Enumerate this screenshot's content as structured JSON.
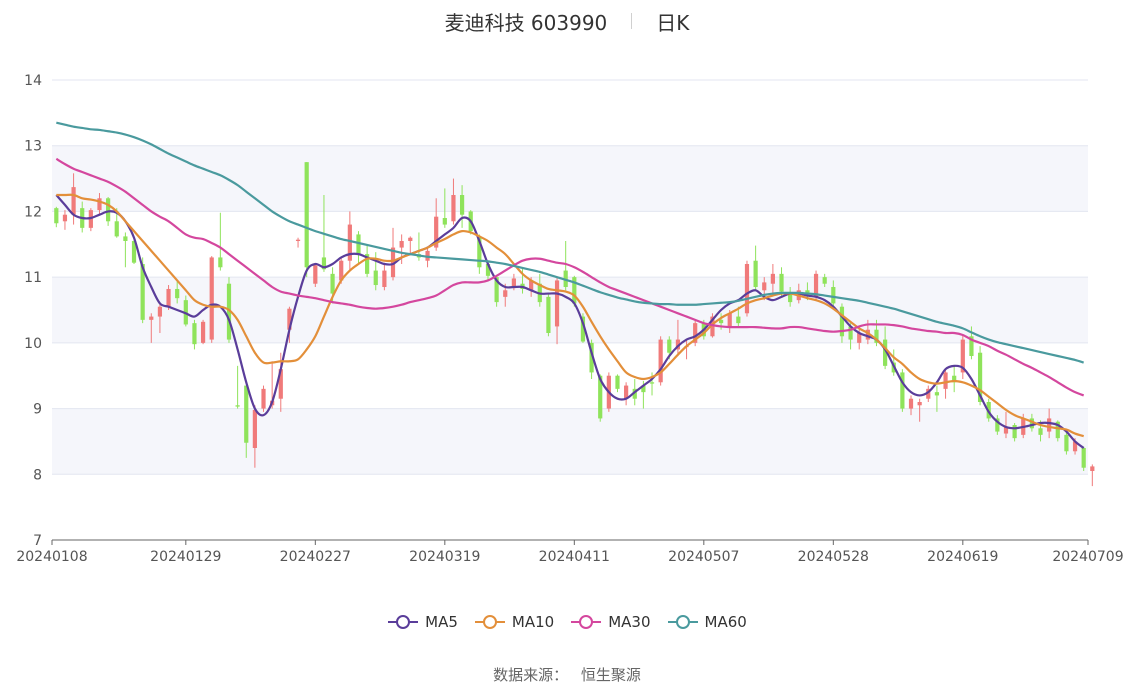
{
  "header": {
    "stock_name": "麦迪科技 603990",
    "period": "日K"
  },
  "source": {
    "label": "数据来源：",
    "value": "恒生聚源"
  },
  "chart_data": {
    "type": "candlestick",
    "title": "麦迪科技 603990",
    "subtitle": "日K",
    "ylim": [
      7,
      14
    ],
    "y_ticks": [
      7,
      8,
      9,
      10,
      11,
      12,
      13,
      14
    ],
    "x_tick_labels": [
      "20240108",
      "20240129",
      "20240227",
      "20240319",
      "20240411",
      "20240507",
      "20240528",
      "20240619",
      "20240709"
    ],
    "x_tick_indices": [
      0,
      15,
      30,
      45,
      60,
      75,
      90,
      105,
      119
    ],
    "candle_count": 120,
    "up_color": "#f07a7a",
    "down_color": "#8fe35b",
    "candles_ohlc": [
      [
        12.05,
        12.07,
        11.76,
        11.82
      ],
      [
        11.85,
        12.02,
        11.72,
        11.95
      ],
      [
        11.95,
        12.58,
        11.8,
        12.37
      ],
      [
        12.05,
        12.15,
        11.68,
        11.75
      ],
      [
        11.75,
        12.05,
        11.7,
        12.02
      ],
      [
        12.02,
        12.28,
        11.95,
        12.2
      ],
      [
        12.2,
        12.22,
        11.78,
        11.85
      ],
      [
        11.85,
        12.05,
        11.6,
        11.62
      ],
      [
        11.62,
        11.68,
        11.15,
        11.55
      ],
      [
        11.55,
        11.58,
        11.2,
        11.22
      ],
      [
        11.2,
        11.3,
        10.3,
        10.35
      ],
      [
        10.35,
        10.45,
        10.0,
        10.4
      ],
      [
        10.4,
        10.6,
        10.15,
        10.55
      ],
      [
        10.55,
        10.88,
        10.5,
        10.82
      ],
      [
        10.82,
        10.95,
        10.6,
        10.68
      ],
      [
        10.65,
        10.72,
        10.25,
        10.28
      ],
      [
        10.3,
        10.35,
        9.9,
        9.98
      ],
      [
        10.0,
        10.35,
        9.98,
        10.32
      ],
      [
        10.05,
        11.32,
        10.0,
        11.3
      ],
      [
        11.3,
        11.98,
        11.1,
        11.15
      ],
      [
        10.9,
        11.0,
        10.0,
        10.05
      ],
      [
        9.05,
        9.65,
        9.0,
        9.03
      ],
      [
        9.35,
        9.35,
        8.25,
        8.48
      ],
      [
        8.4,
        9.05,
        8.1,
        8.98
      ],
      [
        9.0,
        9.35,
        8.95,
        9.3
      ],
      [
        9.05,
        9.72,
        9.0,
        9.12
      ],
      [
        9.15,
        9.85,
        8.95,
        9.6
      ],
      [
        10.2,
        10.55,
        10.0,
        10.52
      ],
      [
        11.55,
        11.6,
        11.45,
        11.57
      ],
      [
        12.75,
        12.75,
        11.0,
        11.15
      ],
      [
        10.9,
        11.2,
        10.85,
        11.18
      ],
      [
        11.3,
        12.25,
        11.08,
        11.12
      ],
      [
        11.05,
        11.15,
        10.6,
        10.75
      ],
      [
        10.95,
        11.3,
        10.9,
        11.25
      ],
      [
        11.25,
        12.0,
        11.1,
        11.8
      ],
      [
        11.65,
        11.7,
        11.2,
        11.35
      ],
      [
        11.35,
        11.5,
        11.0,
        11.05
      ],
      [
        11.1,
        11.38,
        10.8,
        10.88
      ],
      [
        10.85,
        11.22,
        10.8,
        11.1
      ],
      [
        11.0,
        11.75,
        10.95,
        11.45
      ],
      [
        11.45,
        11.65,
        11.2,
        11.55
      ],
      [
        11.55,
        11.62,
        11.35,
        11.6
      ],
      [
        11.35,
        11.68,
        11.25,
        11.3
      ],
      [
        11.25,
        11.45,
        11.15,
        11.4
      ],
      [
        11.45,
        12.2,
        11.4,
        11.92
      ],
      [
        11.9,
        12.35,
        11.75,
        11.8
      ],
      [
        11.85,
        12.5,
        11.8,
        12.25
      ],
      [
        12.25,
        12.4,
        11.75,
        11.95
      ],
      [
        12.0,
        12.02,
        11.65,
        11.7
      ],
      [
        11.6,
        11.65,
        11.05,
        11.15
      ],
      [
        11.2,
        11.25,
        10.95,
        11.02
      ],
      [
        11.0,
        11.02,
        10.55,
        10.62
      ],
      [
        10.7,
        10.9,
        10.55,
        10.8
      ],
      [
        10.85,
        11.05,
        10.8,
        10.98
      ],
      [
        10.9,
        11.15,
        10.75,
        10.82
      ],
      [
        10.8,
        11.0,
        10.7,
        10.95
      ],
      [
        10.9,
        11.05,
        10.55,
        10.62
      ],
      [
        10.7,
        10.75,
        10.1,
        10.15
      ],
      [
        10.25,
        11.0,
        9.98,
        10.95
      ],
      [
        11.1,
        11.55,
        10.8,
        10.85
      ],
      [
        11.0,
        11.02,
        10.55,
        10.6
      ],
      [
        10.4,
        10.45,
        10.0,
        10.02
      ],
      [
        10.0,
        10.05,
        9.45,
        9.55
      ],
      [
        9.5,
        9.52,
        8.8,
        8.85
      ],
      [
        9.0,
        9.55,
        8.95,
        9.5
      ],
      [
        9.5,
        9.52,
        9.25,
        9.3
      ],
      [
        9.15,
        9.4,
        9.05,
        9.35
      ],
      [
        9.3,
        9.45,
        9.05,
        9.15
      ],
      [
        9.35,
        9.42,
        9.0,
        9.25
      ],
      [
        9.4,
        9.55,
        9.2,
        9.38
      ],
      [
        9.4,
        10.1,
        9.35,
        10.05
      ],
      [
        10.05,
        10.1,
        9.75,
        9.85
      ],
      [
        9.9,
        10.35,
        9.8,
        10.05
      ],
      [
        9.95,
        10.05,
        9.75,
        9.95
      ],
      [
        10.0,
        10.35,
        9.95,
        10.3
      ],
      [
        10.3,
        10.35,
        10.05,
        10.1
      ],
      [
        10.1,
        10.45,
        10.08,
        10.4
      ],
      [
        10.35,
        10.45,
        10.2,
        10.3
      ],
      [
        10.25,
        10.5,
        10.15,
        10.45
      ],
      [
        10.4,
        10.55,
        10.25,
        10.3
      ],
      [
        10.45,
        11.25,
        10.4,
        11.2
      ],
      [
        11.25,
        11.48,
        10.8,
        10.85
      ],
      [
        10.8,
        11.0,
        10.65,
        10.92
      ],
      [
        10.9,
        11.2,
        10.75,
        11.05
      ],
      [
        11.05,
        11.15,
        10.7,
        10.78
      ],
      [
        10.75,
        10.85,
        10.55,
        10.62
      ],
      [
        10.65,
        10.9,
        10.6,
        10.8
      ],
      [
        10.8,
        10.92,
        10.65,
        10.72
      ],
      [
        10.7,
        11.1,
        10.65,
        11.05
      ],
      [
        11.0,
        11.05,
        10.85,
        10.9
      ],
      [
        10.85,
        10.95,
        10.55,
        10.6
      ],
      [
        10.55,
        10.6,
        10.0,
        10.1
      ],
      [
        10.25,
        10.3,
        9.9,
        10.05
      ],
      [
        10.0,
        10.2,
        9.9,
        10.15
      ],
      [
        10.05,
        10.35,
        9.98,
        10.2
      ],
      [
        10.2,
        10.35,
        9.95,
        10.0
      ],
      [
        10.05,
        10.25,
        9.6,
        9.65
      ],
      [
        9.7,
        9.9,
        9.5,
        9.55
      ],
      [
        9.55,
        9.6,
        8.95,
        9.0
      ],
      [
        9.0,
        9.2,
        8.9,
        9.15
      ],
      [
        9.05,
        9.15,
        8.8,
        9.1
      ],
      [
        9.15,
        9.35,
        9.1,
        9.3
      ],
      [
        9.25,
        9.35,
        8.95,
        9.2
      ],
      [
        9.3,
        9.6,
        9.15,
        9.55
      ],
      [
        9.5,
        9.65,
        9.25,
        9.4
      ],
      [
        9.55,
        10.12,
        9.45,
        10.05
      ],
      [
        10.1,
        10.25,
        9.75,
        9.8
      ],
      [
        9.85,
        9.95,
        9.05,
        9.1
      ],
      [
        9.1,
        9.15,
        8.8,
        8.85
      ],
      [
        8.85,
        8.9,
        8.6,
        8.65
      ],
      [
        8.62,
        8.95,
        8.55,
        8.72
      ],
      [
        8.75,
        8.78,
        8.5,
        8.55
      ],
      [
        8.6,
        8.92,
        8.55,
        8.85
      ],
      [
        8.85,
        8.92,
        8.65,
        8.7
      ],
      [
        8.7,
        8.82,
        8.5,
        8.6
      ],
      [
        8.65,
        9.0,
        8.55,
        8.85
      ],
      [
        8.8,
        8.82,
        8.5,
        8.55
      ],
      [
        8.6,
        8.65,
        8.3,
        8.35
      ],
      [
        8.35,
        8.55,
        8.3,
        8.5
      ],
      [
        8.4,
        8.42,
        8.05,
        8.1
      ],
      [
        8.05,
        8.15,
        7.82,
        8.12
      ]
    ],
    "series": [
      {
        "name": "MA5",
        "color": "#5a3d9a",
        "values": [
          12.25,
          12.1,
          11.95,
          11.9,
          11.9,
          11.95,
          12.0,
          11.98,
          11.85,
          11.6,
          11.15,
          10.85,
          10.6,
          10.55,
          10.5,
          10.45,
          10.4,
          10.5,
          10.58,
          10.55,
          10.35,
          9.9,
          9.4,
          9.0,
          8.9,
          9.1,
          9.6,
          10.2,
          10.7,
          11.1,
          11.2,
          11.15,
          11.2,
          11.3,
          11.35,
          11.35,
          11.3,
          11.25,
          11.2,
          11.2,
          11.3,
          11.35,
          11.4,
          11.45,
          11.55,
          11.65,
          11.75,
          11.9,
          11.85,
          11.55,
          11.2,
          10.95,
          10.85,
          10.85,
          10.85,
          10.8,
          10.75,
          10.75,
          10.75,
          10.7,
          10.6,
          10.3,
          9.85,
          9.45,
          9.25,
          9.15,
          9.15,
          9.25,
          9.35,
          9.45,
          9.6,
          9.8,
          9.95,
          10.05,
          10.1,
          10.2,
          10.35,
          10.5,
          10.6,
          10.65,
          10.75,
          10.8,
          10.7,
          10.65,
          10.7,
          10.75,
          10.75,
          10.72,
          10.7,
          10.65,
          10.55,
          10.4,
          10.25,
          10.15,
          10.1,
          10.05,
          9.9,
          9.65,
          9.4,
          9.25,
          9.2,
          9.25,
          9.4,
          9.6,
          9.65,
          9.62,
          9.45,
          9.2,
          8.95,
          8.8,
          8.72,
          8.7,
          8.72,
          8.75,
          8.78,
          8.78,
          8.75,
          8.65,
          8.5,
          8.4
        ]
      },
      {
        "name": "MA10",
        "color": "#e38f3a",
        "values": [
          12.25,
          12.25,
          12.25,
          12.2,
          12.18,
          12.15,
          12.1,
          12.0,
          11.85,
          11.7,
          11.55,
          11.4,
          11.25,
          11.1,
          10.95,
          10.8,
          10.65,
          10.58,
          10.55,
          10.55,
          10.5,
          10.35,
          10.1,
          9.85,
          9.7,
          9.7,
          9.72,
          9.72,
          9.75,
          9.9,
          10.1,
          10.4,
          10.7,
          10.95,
          11.1,
          11.2,
          11.28,
          11.28,
          11.25,
          11.25,
          11.3,
          11.35,
          11.4,
          11.45,
          11.52,
          11.58,
          11.65,
          11.7,
          11.68,
          11.62,
          11.55,
          11.45,
          11.35,
          11.2,
          11.05,
          10.95,
          10.88,
          10.82,
          10.8,
          10.78,
          10.72,
          10.55,
          10.32,
          10.1,
          9.9,
          9.72,
          9.55,
          9.48,
          9.45,
          9.48,
          9.55,
          9.68,
          9.82,
          9.95,
          10.05,
          10.15,
          10.28,
          10.38,
          10.45,
          10.52,
          10.6,
          10.65,
          10.68,
          10.72,
          10.75,
          10.75,
          10.72,
          10.68,
          10.65,
          10.6,
          10.52,
          10.42,
          10.32,
          10.22,
          10.15,
          10.05,
          9.92,
          9.78,
          9.68,
          9.55,
          9.45,
          9.4,
          9.38,
          9.4,
          9.42,
          9.4,
          9.35,
          9.28,
          9.18,
          9.08,
          8.98,
          8.9,
          8.85,
          8.8,
          8.75,
          8.72,
          8.7,
          8.68,
          8.62,
          8.58
        ]
      },
      {
        "name": "MA30",
        "color": "#d4479e",
        "values": [
          12.8,
          12.72,
          12.65,
          12.6,
          12.55,
          12.5,
          12.45,
          12.38,
          12.3,
          12.2,
          12.1,
          12.0,
          11.92,
          11.85,
          11.75,
          11.65,
          11.6,
          11.58,
          11.52,
          11.45,
          11.35,
          11.25,
          11.15,
          11.05,
          10.95,
          10.85,
          10.78,
          10.75,
          10.72,
          10.7,
          10.68,
          10.65,
          10.62,
          10.6,
          10.58,
          10.55,
          10.53,
          10.52,
          10.53,
          10.55,
          10.58,
          10.62,
          10.65,
          10.68,
          10.72,
          10.8,
          10.88,
          10.92,
          10.92,
          10.92,
          10.95,
          11.02,
          11.1,
          11.18,
          11.25,
          11.28,
          11.28,
          11.25,
          11.22,
          11.2,
          11.15,
          11.08,
          11.0,
          10.92,
          10.85,
          10.8,
          10.75,
          10.7,
          10.65,
          10.6,
          10.55,
          10.5,
          10.45,
          10.4,
          10.35,
          10.3,
          10.27,
          10.25,
          10.24,
          10.24,
          10.24,
          10.24,
          10.23,
          10.22,
          10.22,
          10.24,
          10.24,
          10.22,
          10.2,
          10.18,
          10.17,
          10.18,
          10.2,
          10.25,
          10.28,
          10.28,
          10.28,
          10.27,
          10.25,
          10.22,
          10.2,
          10.18,
          10.17,
          10.15,
          10.15,
          10.12,
          10.05,
          10.0,
          9.95,
          9.88,
          9.82,
          9.75,
          9.68,
          9.62,
          9.55,
          9.48,
          9.4,
          9.32,
          9.25,
          9.2
        ]
      },
      {
        "name": "MA60",
        "color": "#4a9a9e",
        "values": [
          13.35,
          13.32,
          13.29,
          13.27,
          13.25,
          13.24,
          13.22,
          13.2,
          13.17,
          13.13,
          13.08,
          13.02,
          12.95,
          12.88,
          12.82,
          12.76,
          12.7,
          12.65,
          12.6,
          12.55,
          12.48,
          12.4,
          12.3,
          12.2,
          12.1,
          12.0,
          11.92,
          11.85,
          11.8,
          11.75,
          11.7,
          11.66,
          11.62,
          11.58,
          11.55,
          11.52,
          11.49,
          11.46,
          11.43,
          11.4,
          11.37,
          11.35,
          11.33,
          11.31,
          11.3,
          11.29,
          11.28,
          11.27,
          11.26,
          11.25,
          11.24,
          11.22,
          11.2,
          11.17,
          11.14,
          11.11,
          11.08,
          11.04,
          11.0,
          10.96,
          10.92,
          10.87,
          10.82,
          10.77,
          10.73,
          10.69,
          10.66,
          10.63,
          10.61,
          10.6,
          10.59,
          10.59,
          10.58,
          10.58,
          10.58,
          10.59,
          10.6,
          10.61,
          10.62,
          10.64,
          10.67,
          10.7,
          10.73,
          10.75,
          10.76,
          10.76,
          10.76,
          10.75,
          10.74,
          10.72,
          10.7,
          10.68,
          10.66,
          10.64,
          10.61,
          10.58,
          10.55,
          10.52,
          10.48,
          10.44,
          10.4,
          10.36,
          10.32,
          10.29,
          10.26,
          10.22,
          10.16,
          10.1,
          10.05,
          10.01,
          9.98,
          9.95,
          9.92,
          9.89,
          9.86,
          9.83,
          9.8,
          9.77,
          9.74,
          9.7
        ]
      }
    ],
    "legend_position": "bottom",
    "grid": true
  }
}
